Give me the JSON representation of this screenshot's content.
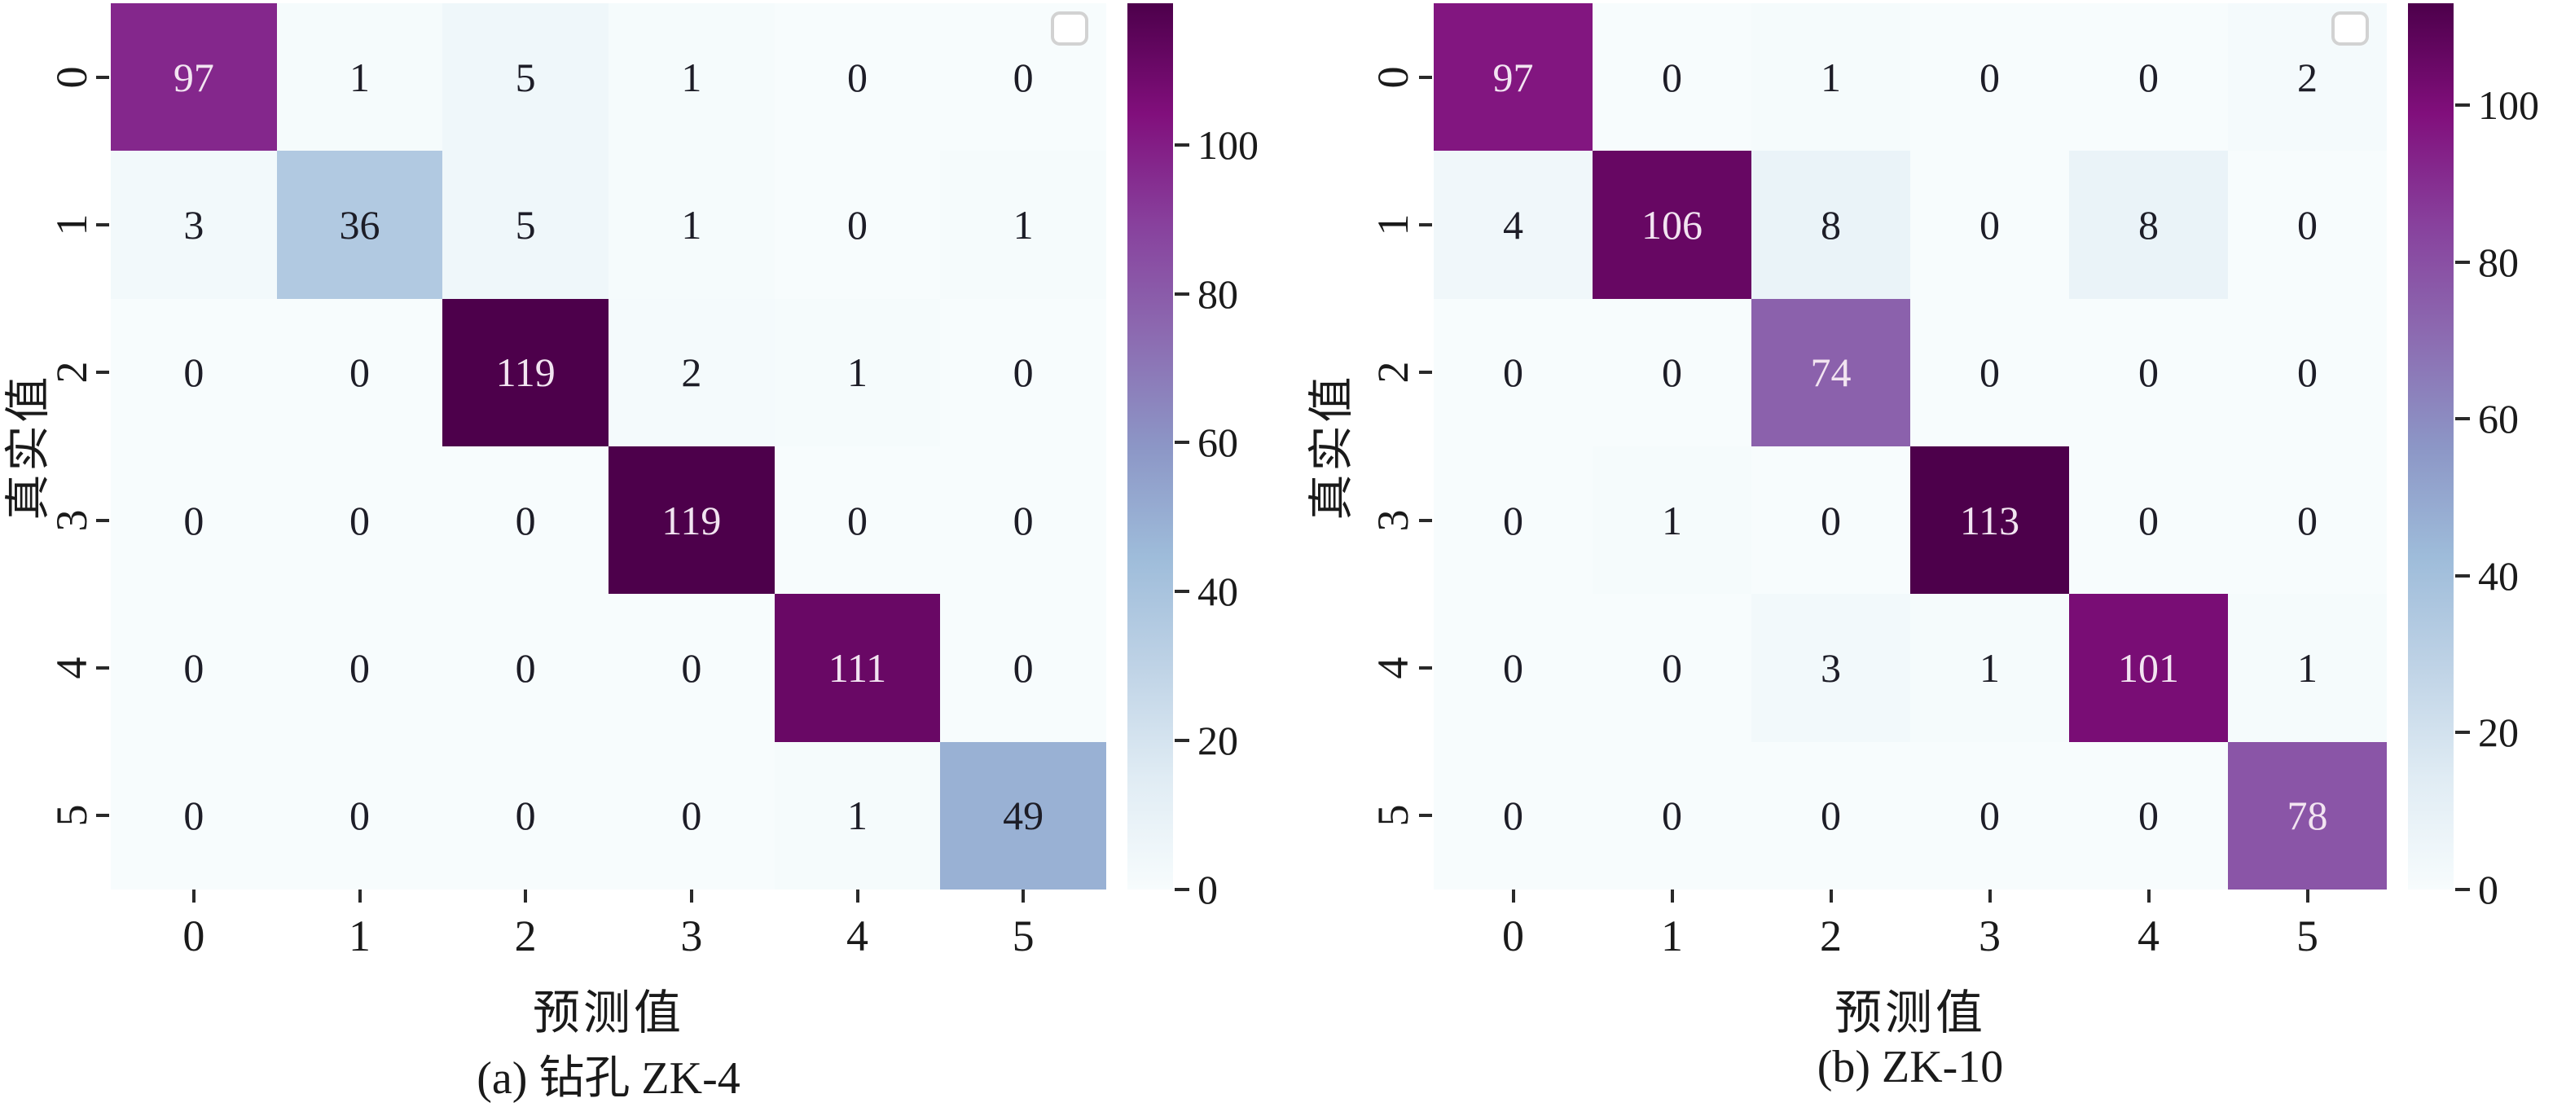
{
  "figure": {
    "background": "#ffffff"
  },
  "colormap": {
    "name": "BuPu",
    "stops": [
      [
        0.0,
        "#f7fcfd"
      ],
      [
        0.125,
        "#e0ecf4"
      ],
      [
        0.25,
        "#bfd3e6"
      ],
      [
        0.375,
        "#9ebcda"
      ],
      [
        0.5,
        "#8c96c6"
      ],
      [
        0.625,
        "#8c6bb1"
      ],
      [
        0.75,
        "#88419d"
      ],
      [
        0.875,
        "#810f7c"
      ],
      [
        1.0,
        "#4d004b"
      ]
    ],
    "dark_text": "#1d1d27",
    "light_text": "#f2e4f1",
    "light_text_threshold": 0.55
  },
  "chart_data": [
    {
      "type": "heatmap",
      "caption": "(a) 钻孔 ZK-4",
      "xlabel": "预测值",
      "ylabel": "真实值",
      "x_ticks": [
        "0",
        "1",
        "2",
        "3",
        "4",
        "5"
      ],
      "y_ticks": [
        "0",
        "1",
        "2",
        "3",
        "4",
        "5"
      ],
      "matrix": [
        [
          97,
          1,
          5,
          1,
          0,
          0
        ],
        [
          3,
          36,
          5,
          1,
          0,
          1
        ],
        [
          0,
          0,
          119,
          2,
          1,
          0
        ],
        [
          0,
          0,
          0,
          119,
          0,
          0
        ],
        [
          0,
          0,
          0,
          0,
          111,
          0
        ],
        [
          0,
          0,
          0,
          0,
          1,
          49
        ]
      ],
      "vmin": 0,
      "vmax": 119,
      "colorbar_ticks": [
        0,
        20,
        40,
        60,
        80,
        100
      ],
      "corner_box": true
    },
    {
      "type": "heatmap",
      "caption": "(b) ZK-10",
      "xlabel": "预测值",
      "ylabel": "真实值",
      "x_ticks": [
        "0",
        "1",
        "2",
        "3",
        "4",
        "5"
      ],
      "y_ticks": [
        "0",
        "1",
        "2",
        "3",
        "4",
        "5"
      ],
      "matrix": [
        [
          97,
          0,
          1,
          0,
          0,
          2
        ],
        [
          4,
          106,
          8,
          0,
          8,
          0
        ],
        [
          0,
          0,
          74,
          0,
          0,
          0
        ],
        [
          0,
          1,
          0,
          113,
          0,
          0
        ],
        [
          0,
          0,
          3,
          1,
          101,
          1
        ],
        [
          0,
          0,
          0,
          0,
          0,
          78
        ]
      ],
      "vmin": 0,
      "vmax": 113,
      "colorbar_ticks": [
        0,
        20,
        40,
        60,
        80,
        100
      ],
      "corner_box": true
    }
  ]
}
